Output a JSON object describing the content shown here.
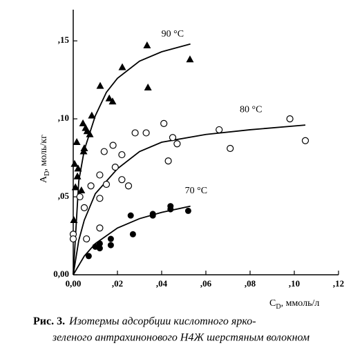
{
  "chart_data": {
    "type": "scatter",
    "xlabel": {
      "symbol": "C",
      "subscript": "D",
      "unit": ", ммоль/л"
    },
    "ylabel": {
      "symbol": "A",
      "subscript": "D",
      "unit": ", моль/кг"
    },
    "xlim": [
      0,
      0.12
    ],
    "ylim": [
      0,
      0.17
    ],
    "xticks": [
      {
        "value": 0,
        "label": "0,00"
      },
      {
        "value": 0.02,
        "label": ",02"
      },
      {
        "value": 0.04,
        "label": ",04"
      },
      {
        "value": 0.06,
        "label": ",06"
      },
      {
        "value": 0.08,
        "label": ",08"
      },
      {
        "value": 0.1,
        "label": ",10"
      },
      {
        "value": 0.12,
        "label": ",12"
      }
    ],
    "yticks": [
      {
        "value": 0,
        "label": "0,00"
      },
      {
        "value": 0.05,
        "label": ",05"
      },
      {
        "value": 0.1,
        "label": ",10"
      },
      {
        "value": 0.15,
        "label": ",15"
      }
    ],
    "color": "#000000",
    "series": [
      {
        "name": "90 °C",
        "marker": "triangle",
        "x": [
          0.0003,
          0.0006,
          0.001,
          0.0016,
          0.0019,
          0.0022,
          0.0037,
          0.0044,
          0.0047,
          0.005,
          0.0056,
          0.0063,
          0.0075,
          0.0084,
          0.0122,
          0.0163,
          0.0178,
          0.0222,
          0.0334,
          0.0338,
          0.0528
        ],
        "values": [
          0.035,
          0.071,
          0.056,
          0.085,
          0.063,
          0.068,
          0.054,
          0.097,
          0.079,
          0.081,
          0.094,
          0.092,
          0.09,
          0.102,
          0.121,
          0.113,
          0.111,
          0.133,
          0.147,
          0.12,
          0.138
        ],
        "fit_x": [
          0,
          0.0025,
          0.005,
          0.01,
          0.015,
          0.02,
          0.03,
          0.04,
          0.053
        ],
        "fit_values": [
          0,
          0.06,
          0.08,
          0.102,
          0.117,
          0.126,
          0.137,
          0.143,
          0.148
        ]
      },
      {
        "name": "80 °C",
        "marker": "open-circle",
        "x": [
          0,
          0,
          0.003,
          0.005,
          0.006,
          0.008,
          0.012,
          0.012,
          0.012,
          0.014,
          0.015,
          0.018,
          0.019,
          0.022,
          0.022,
          0.025,
          0.028,
          0.033,
          0.041,
          0.043,
          0.045,
          0.047,
          0.066,
          0.071,
          0.098,
          0.105
        ],
        "values": [
          0.026,
          0.023,
          0.05,
          0.043,
          0.023,
          0.057,
          0.049,
          0.03,
          0.064,
          0.079,
          0.058,
          0.083,
          0.069,
          0.077,
          0.061,
          0.057,
          0.091,
          0.091,
          0.097,
          0.073,
          0.088,
          0.084,
          0.093,
          0.081,
          0.1,
          0.086
        ],
        "fit_x": [
          0,
          0.0025,
          0.005,
          0.01,
          0.02,
          0.03,
          0.04,
          0.06,
          0.08,
          0.105
        ],
        "fit_values": [
          0,
          0.022,
          0.035,
          0.052,
          0.068,
          0.079,
          0.085,
          0.09,
          0.093,
          0.096
        ]
      },
      {
        "name": "70 °C",
        "marker": "filled-circle",
        "x": [
          0.007,
          0.01,
          0.012,
          0.012,
          0.017,
          0.017,
          0.026,
          0.027,
          0.036,
          0.036,
          0.044,
          0.044,
          0.052
        ],
        "values": [
          0.012,
          0.018,
          0.02,
          0.017,
          0.019,
          0.023,
          0.038,
          0.026,
          0.038,
          0.039,
          0.044,
          0.042,
          0.041
        ],
        "fit_x": [
          0,
          0.005,
          0.01,
          0.02,
          0.03,
          0.04,
          0.053
        ],
        "fit_values": [
          0,
          0.012,
          0.02,
          0.03,
          0.036,
          0.04,
          0.044
        ]
      }
    ]
  },
  "caption": {
    "label": "Рис. 3.",
    "lines": [
      "Изотермы адсорбции кислотного ярко-",
      "зеленого антрахинонового Н4Ж шерстяным волокном"
    ]
  }
}
